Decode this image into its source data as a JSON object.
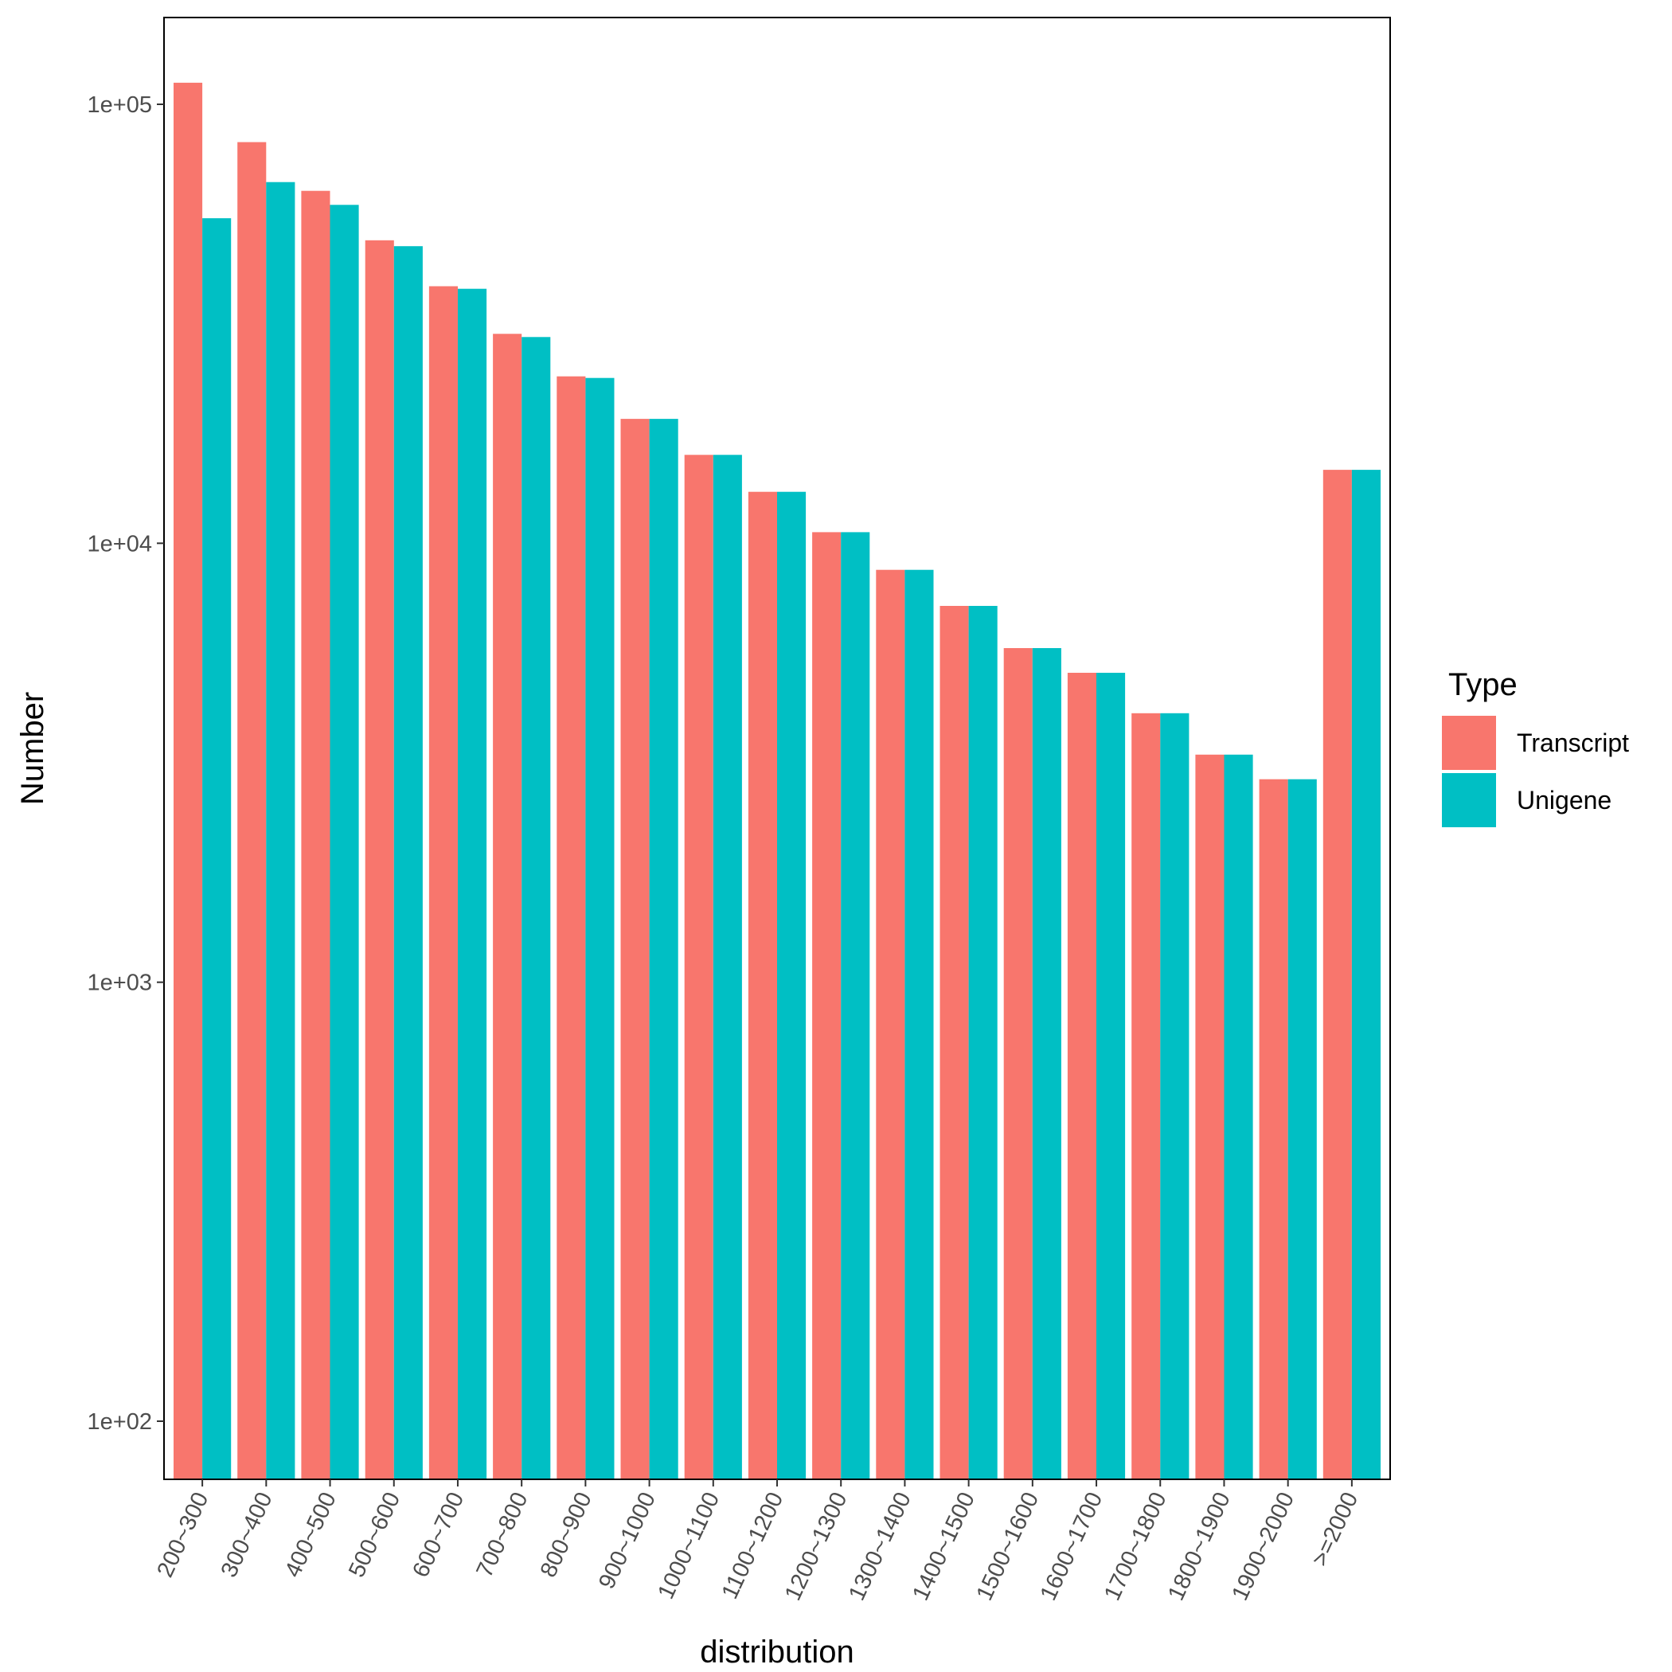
{
  "chart_data": {
    "type": "bar",
    "title": "",
    "xlabel": "distribution",
    "ylabel": "Number",
    "y_scale": "log10",
    "ylim": [
      70,
      160000
    ],
    "y_ticks": [
      100,
      1000,
      10000,
      100000
    ],
    "y_tick_labels": [
      "1e+02",
      "1e+03",
      "1e+04",
      "1e+05"
    ],
    "categories": [
      "200~300",
      "300~400",
      "400~500",
      "500~600",
      "600~700",
      "700~800",
      "800~900",
      "900~1000",
      "1000~1100",
      "1100~1200",
      "1200~1300",
      "1300~1400",
      "1400~1500",
      "1500~1600",
      "1600~1700",
      "1700~1800",
      "1800~1900",
      "1900~2000",
      ">=2000"
    ],
    "series": [
      {
        "name": "Transcript",
        "color": "#F8766D",
        "values": [
          112000,
          82000,
          63500,
          49000,
          38500,
          30000,
          24000,
          19200,
          15900,
          13100,
          10600,
          8700,
          7200,
          5770,
          5070,
          4100,
          3300,
          2900,
          14700
        ]
      },
      {
        "name": "Unigene",
        "color": "#00BFC4",
        "values": [
          55000,
          66500,
          59000,
          47500,
          38000,
          29500,
          23800,
          19200,
          15900,
          13100,
          10600,
          8700,
          7200,
          5770,
          5070,
          4100,
          3300,
          2900,
          14700
        ]
      }
    ],
    "legend": {
      "title": "Type",
      "position": "right"
    },
    "grid": false
  }
}
